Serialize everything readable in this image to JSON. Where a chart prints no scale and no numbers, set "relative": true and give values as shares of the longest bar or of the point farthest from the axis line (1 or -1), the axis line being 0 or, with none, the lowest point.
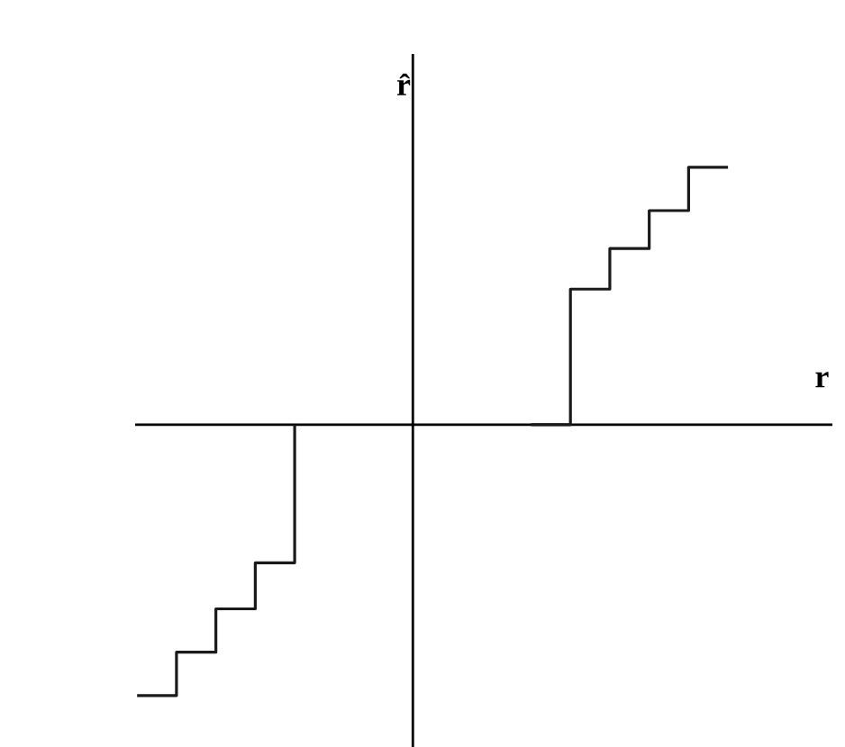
{
  "chart_data": {
    "type": "step",
    "relative": true,
    "xlabel": "r",
    "ylabel": "r̂",
    "line_style": "solid",
    "marker": "none",
    "categories": [
      null,
      null,
      null,
      null,
      null,
      null,
      null,
      null,
      null,
      null,
      null,
      null,
      null,
      null,
      null,
      null
    ],
    "series": [
      {
        "color": "#1a1a1a",
        "values": [
          -1,
          -0.84,
          -0.68,
          -0.51,
          0,
          null,
          null,
          null,
          null,
          null,
          null,
          null,
          null,
          null,
          null,
          null
        ]
      },
      {
        "color": "#1a1a1a",
        "values": [
          null,
          null,
          null,
          null,
          null,
          null,
          null,
          null,
          null,
          null,
          0,
          0.5,
          0.65,
          0.79,
          0.95,
          0.95
        ]
      }
    ]
  }
}
